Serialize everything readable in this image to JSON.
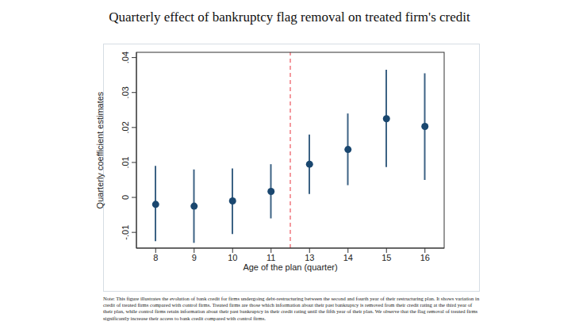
{
  "chart_data": {
    "type": "scatter",
    "title": "Quarterly effect of bankruptcy flag removal on treated firm's credit",
    "x_label": "Age of the plan (quarter)",
    "y_label": "Quarterly coefficient estimates",
    "note": "Note: This figure illustrates the evolution of bank credit for firms undergoing debt-restructuring between the second and fourth year of their restructuring plan. It shows variation in credit of treated firms compared with control firms. Treated firms are those which information about their past bankruptcy is removed from their credit rating at the third year of their plan, while control firms retain information about their past bankruptcy in their credit rating until the fifth year of their plan. We observe that the flag removal of treated firms significantly increase their access to bank credit compared with control firms.",
    "categories": [
      "8",
      "9",
      "10",
      "11",
      "13",
      "14",
      "15",
      "16"
    ],
    "values": [
      -0.002,
      -0.0025,
      -0.001,
      0.0017,
      0.0095,
      0.0137,
      0.0225,
      0.0203
    ],
    "ci_low": [
      -0.0125,
      -0.013,
      -0.0105,
      -0.006,
      0.001,
      0.0035,
      0.0087,
      0.005
    ],
    "ci_high": [
      0.009,
      0.008,
      0.0083,
      0.0095,
      0.018,
      0.024,
      0.0365,
      0.0355
    ],
    "event_line_between": [
      "11",
      "13"
    ],
    "event_line_color": "#e8333c",
    "color": "#1a476f",
    "marker": "circle",
    "ylim": [
      -0.0145,
      0.0415
    ],
    "yticks": [
      {
        "value": -0.01,
        "label": "-.01"
      },
      0,
      {
        "value": 0.01,
        "label": ".01"
      },
      {
        "value": 0.02,
        "label": ".02"
      },
      {
        "value": 0.03,
        "label": ".03"
      },
      {
        "value": 0.04,
        "label": ".04"
      }
    ],
    "grid": false
  }
}
